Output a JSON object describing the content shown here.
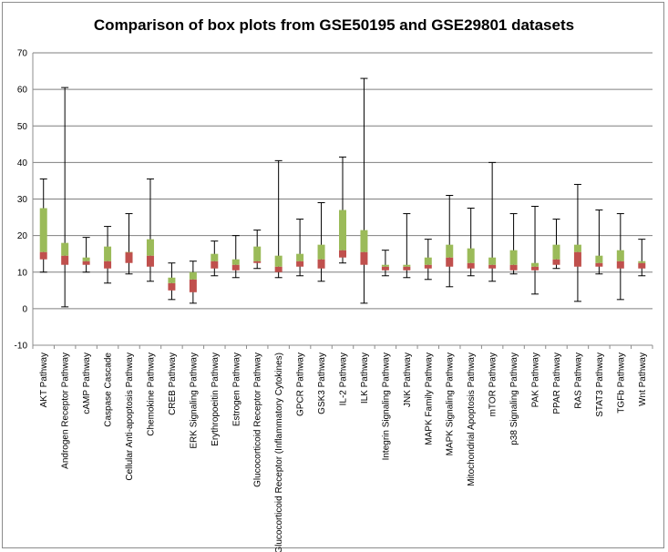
{
  "chart_data": {
    "type": "box",
    "title": "Comparison of box plots from GSE50195 and GSE29801 datasets",
    "xlabel": "",
    "ylabel": "",
    "ylim": [
      -10,
      70
    ],
    "yticks": [
      -10,
      0,
      10,
      20,
      30,
      40,
      50,
      60,
      70
    ],
    "grid": true,
    "colors": {
      "lower_box": "#c0504d",
      "upper_box": "#9bbb59",
      "whisker": "#000000",
      "gridline": "#7f7f7f"
    },
    "categories": [
      "AKT Pathway",
      "Androgen Receptor Pathway",
      "cAMP Pathway",
      "Caspase Cascade",
      "Cellular Anti-apoptosis Pathway",
      "Chemokine Pathway",
      "CREB Pathway",
      "ERK Signaling Pathway",
      "Erythropoeitin Pathway",
      "Estrogen Pathway",
      "Glucocorticoid Receptor Pathway",
      "Glucocorticoid Receptor (Inflammatory Cytokines)",
      "GPCR Pathway",
      "GSK3 Pathway",
      "IL-2 Pathway",
      "ILK Pathway",
      "Integrin Signaling Pathway",
      "JNK Pathway",
      "MAPK Family Pathway",
      "MAPK Signaling Pathway",
      "Mitochondrial Apoptosis Pathway",
      "mTOR Pathway",
      "p38 Signaling Pathway",
      "PAK Pathway",
      "PPAR Pathway",
      "RAS Pathway",
      "STAT3 Pathway",
      "TGFb Pathway",
      "Wnt Pathway"
    ],
    "boxes": [
      {
        "min": 10.0,
        "q1": 13.5,
        "median": 15.5,
        "q3": 27.5,
        "max": 35.5
      },
      {
        "min": 0.5,
        "q1": 12.0,
        "median": 14.5,
        "q3": 18.0,
        "max": 60.5
      },
      {
        "min": 10.0,
        "q1": 12.0,
        "median": 13.0,
        "q3": 14.0,
        "max": 19.5
      },
      {
        "min": 7.0,
        "q1": 11.0,
        "median": 13.0,
        "q3": 17.0,
        "max": 22.5
      },
      {
        "min": 9.5,
        "q1": 12.5,
        "median": 15.5,
        "q3": 15.5,
        "max": 26.0
      },
      {
        "min": 7.5,
        "q1": 11.5,
        "median": 14.5,
        "q3": 19.0,
        "max": 35.5
      },
      {
        "min": 2.5,
        "q1": 5.0,
        "median": 7.0,
        "q3": 8.5,
        "max": 12.5
      },
      {
        "min": 1.5,
        "q1": 4.5,
        "median": 8.0,
        "q3": 10.0,
        "max": 13.0
      },
      {
        "min": 9.0,
        "q1": 11.0,
        "median": 13.0,
        "q3": 15.0,
        "max": 18.5
      },
      {
        "min": 8.5,
        "q1": 10.5,
        "median": 12.0,
        "q3": 13.5,
        "max": 20.0
      },
      {
        "min": 11.0,
        "q1": 12.5,
        "median": 13.0,
        "q3": 17.0,
        "max": 21.5
      },
      {
        "min": 8.5,
        "q1": 10.0,
        "median": 11.5,
        "q3": 14.5,
        "max": 40.5
      },
      {
        "min": 9.0,
        "q1": 11.5,
        "median": 13.0,
        "q3": 15.0,
        "max": 24.5
      },
      {
        "min": 7.5,
        "q1": 11.0,
        "median": 13.5,
        "q3": 17.5,
        "max": 29.0
      },
      {
        "min": 12.5,
        "q1": 14.0,
        "median": 16.0,
        "q3": 27.0,
        "max": 41.5
      },
      {
        "min": 1.5,
        "q1": 12.0,
        "median": 15.5,
        "q3": 21.5,
        "max": 63.0
      },
      {
        "min": 9.0,
        "q1": 10.5,
        "median": 11.5,
        "q3": 12.0,
        "max": 16.0
      },
      {
        "min": 8.5,
        "q1": 10.5,
        "median": 11.5,
        "q3": 12.0,
        "max": 26.0
      },
      {
        "min": 8.0,
        "q1": 11.0,
        "median": 12.0,
        "q3": 14.0,
        "max": 19.0
      },
      {
        "min": 6.0,
        "q1": 11.5,
        "median": 14.0,
        "q3": 17.5,
        "max": 31.0
      },
      {
        "min": 9.0,
        "q1": 11.0,
        "median": 12.5,
        "q3": 16.5,
        "max": 27.5
      },
      {
        "min": 7.5,
        "q1": 11.0,
        "median": 12.0,
        "q3": 14.0,
        "max": 40.0
      },
      {
        "min": 9.5,
        "q1": 10.5,
        "median": 12.0,
        "q3": 16.0,
        "max": 26.0
      },
      {
        "min": 4.0,
        "q1": 10.5,
        "median": 11.5,
        "q3": 12.5,
        "max": 28.0
      },
      {
        "min": 11.0,
        "q1": 12.0,
        "median": 13.5,
        "q3": 17.5,
        "max": 24.5
      },
      {
        "min": 2.0,
        "q1": 11.5,
        "median": 15.5,
        "q3": 17.5,
        "max": 34.0
      },
      {
        "min": 9.5,
        "q1": 11.5,
        "median": 12.5,
        "q3": 14.5,
        "max": 27.0
      },
      {
        "min": 2.5,
        "q1": 11.0,
        "median": 13.0,
        "q3": 16.0,
        "max": 26.0
      },
      {
        "min": 9.0,
        "q1": 11.0,
        "median": 12.5,
        "q3": 13.0,
        "max": 19.0
      }
    ]
  }
}
